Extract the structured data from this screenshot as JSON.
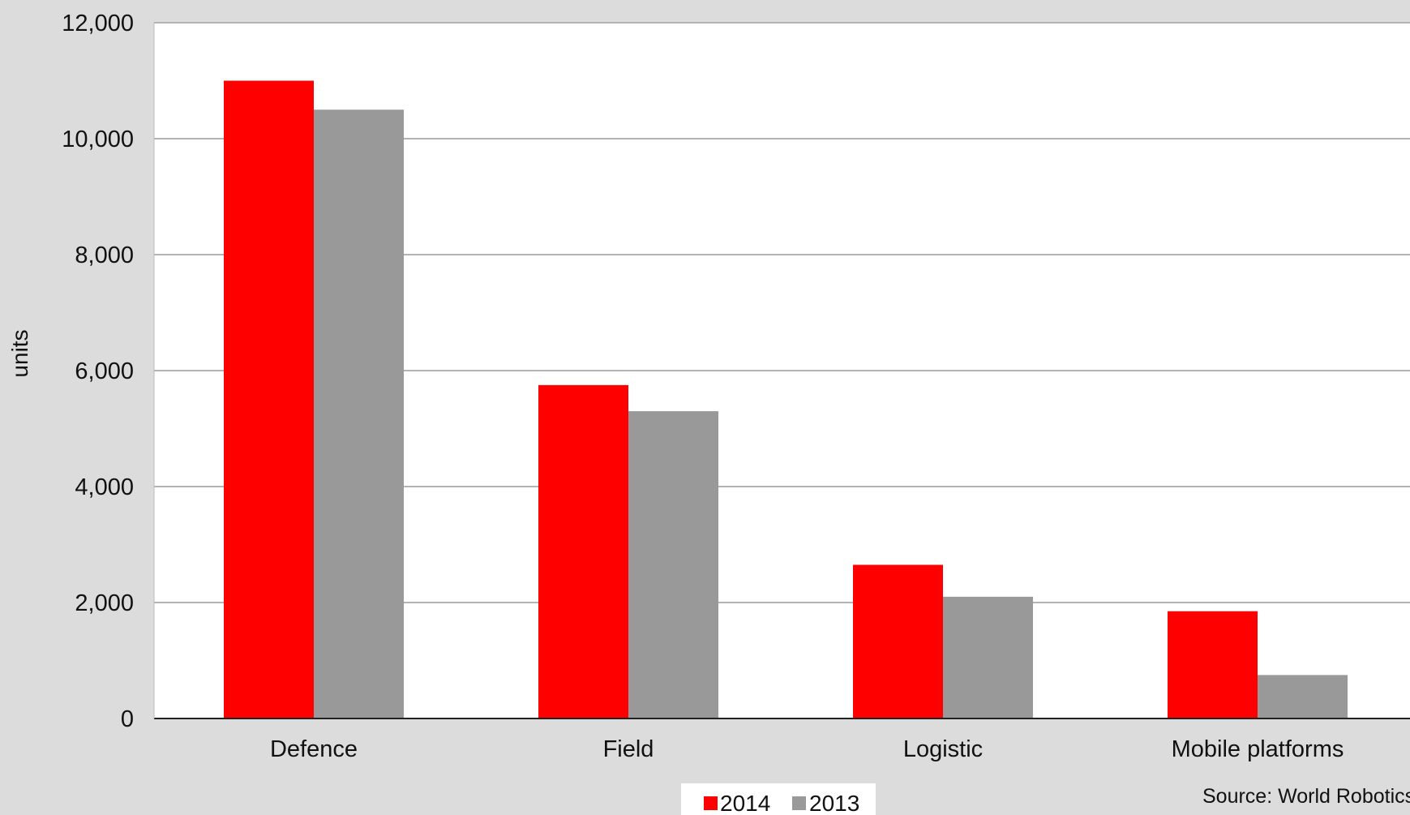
{
  "chart_data": {
    "type": "bar",
    "title": "",
    "xlabel": "",
    "ylabel": "units",
    "ylim": [
      0,
      12000
    ],
    "yticks": [
      0,
      2000,
      4000,
      6000,
      8000,
      10000,
      12000
    ],
    "ytick_labels": [
      "0",
      "2,000",
      "4,000",
      "6,000",
      "8,000",
      "10,000",
      "12,000"
    ],
    "categories": [
      "Defence",
      "Field",
      "Logistic",
      "Mobile platforms"
    ],
    "series": [
      {
        "name": "2014",
        "color": "#ff0000",
        "values": [
          11000,
          5750,
          2650,
          1850
        ]
      },
      {
        "name": "2013",
        "color": "#999999",
        "values": [
          10500,
          5300,
          2100,
          750
        ]
      }
    ],
    "grid": true,
    "legend": "bottom-center",
    "source": "Source: World Robotics"
  }
}
